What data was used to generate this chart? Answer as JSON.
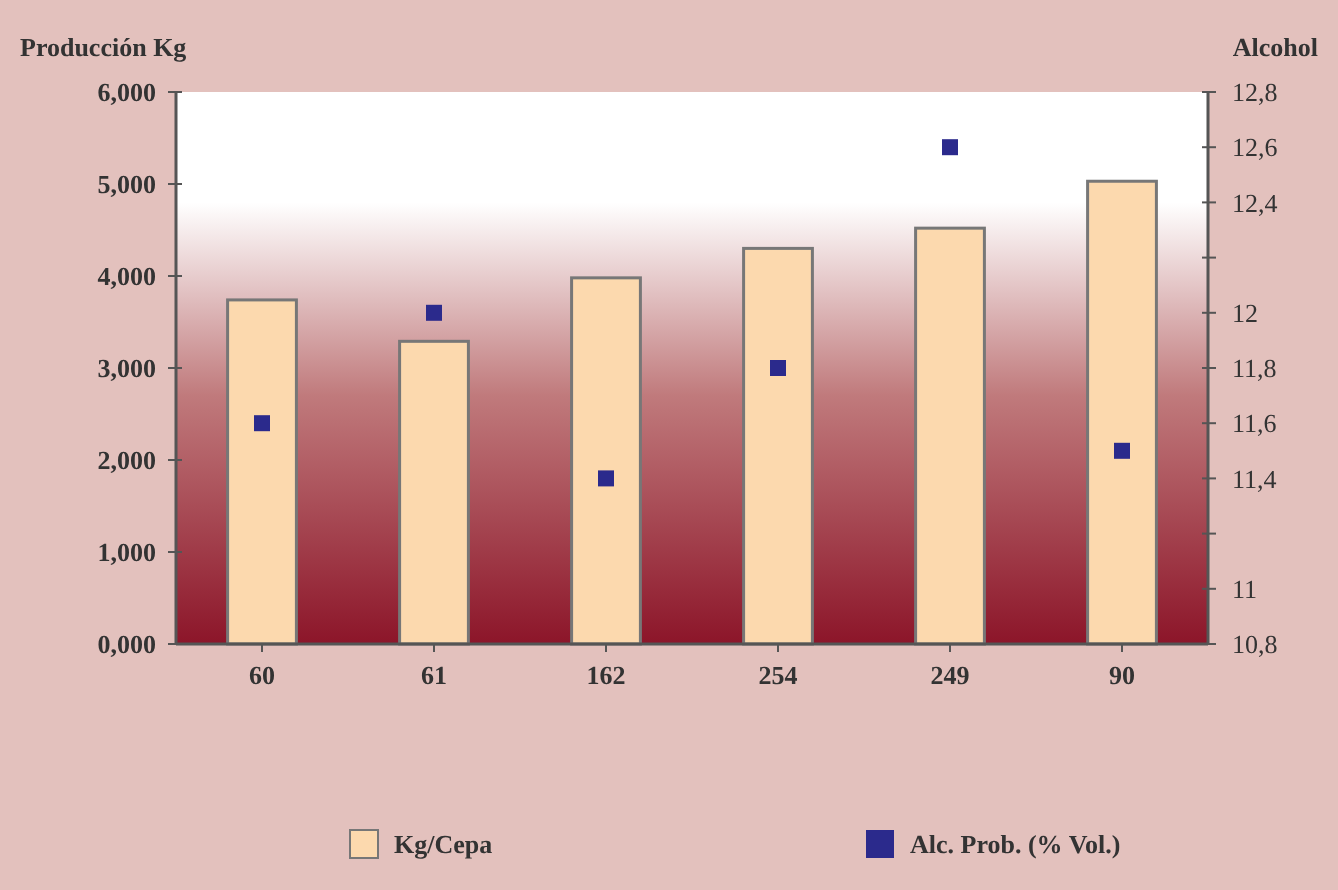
{
  "chart_data": {
    "type": "bar",
    "ylabel": "Producción Kg",
    "y2label": "Alcohol",
    "categories": [
      "60",
      "61",
      "162",
      "254",
      "249",
      "90"
    ],
    "series": [
      {
        "name": "Kg/Cepa",
        "color": "#fcd9ae",
        "values": [
          3.74,
          3.29,
          3.98,
          4.3,
          4.52,
          5.03
        ]
      },
      {
        "name": "Alc. Prob. (% Vol.)",
        "type": "scatter",
        "axis": "y2",
        "color": "#2b2a8c",
        "marker": "square",
        "values": [
          11.6,
          12.0,
          11.4,
          11.8,
          12.6,
          11.5
        ]
      }
    ],
    "ylim": [
      0,
      6
    ],
    "yticks": [
      {
        "value": 0,
        "label": "0,000"
      },
      {
        "value": 1,
        "label": "1,000"
      },
      {
        "value": 2,
        "label": "2,000"
      },
      {
        "value": 3,
        "label": "3,000"
      },
      {
        "value": 4,
        "label": "4,000"
      },
      {
        "value": 5,
        "label": "5,000"
      },
      {
        "value": 6,
        "label": "6,000"
      }
    ],
    "y2lim": [
      10.8,
      12.8
    ],
    "y2ticks": [
      {
        "value": 10.8,
        "label": "10,8"
      },
      {
        "value": 11,
        "label": "11"
      },
      {
        "value": 11.2,
        "label": null
      },
      {
        "value": 11.4,
        "label": "11,4"
      },
      {
        "value": 11.6,
        "label": "11,6"
      },
      {
        "value": 11.8,
        "label": "11,8"
      },
      {
        "value": 12,
        "label": "12"
      },
      {
        "value": 12.2,
        "label": null
      },
      {
        "value": 12.4,
        "label": "12,4"
      },
      {
        "value": 12.6,
        "label": "12,6"
      },
      {
        "value": 12.8,
        "label": "12,8"
      }
    ],
    "legend": "bottom",
    "grid": false
  }
}
